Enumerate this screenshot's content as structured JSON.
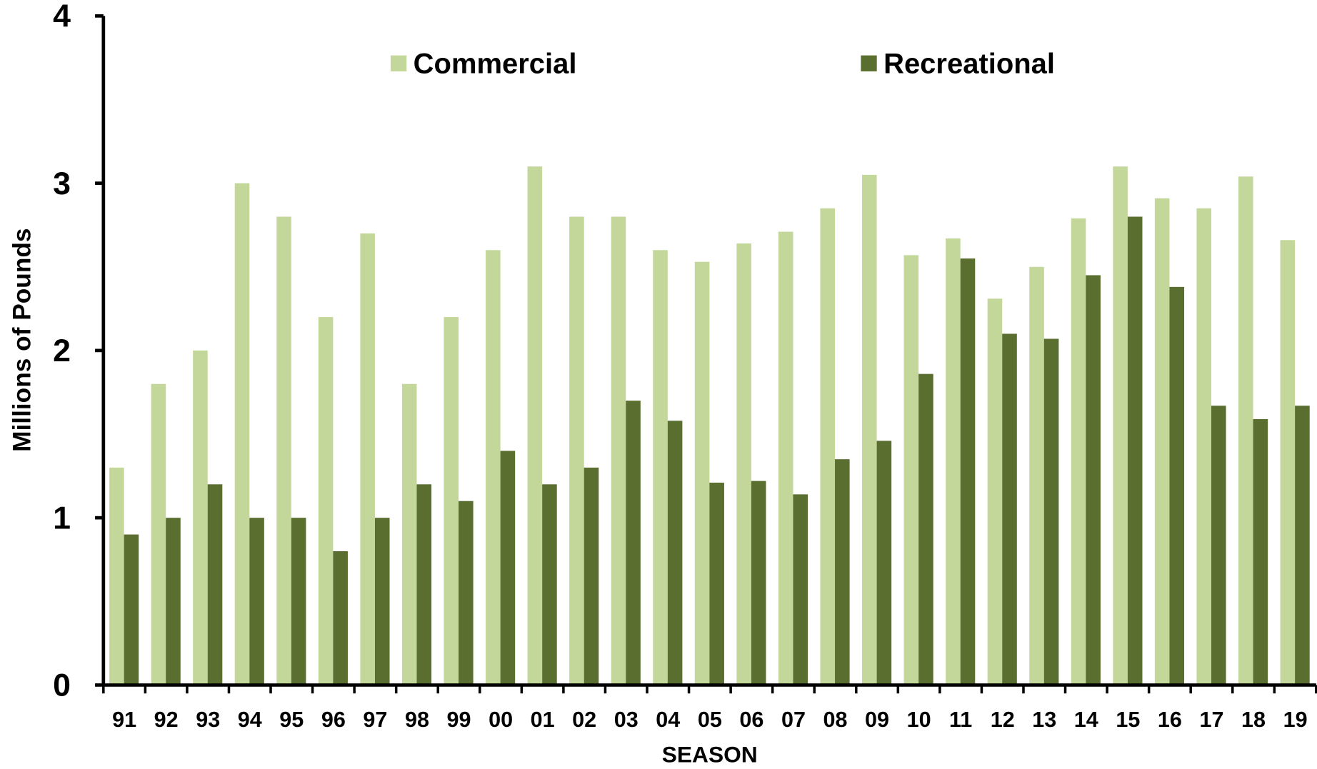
{
  "chart_data": {
    "type": "bar",
    "y_label": "Millions of Pounds",
    "x_label": "SEASON",
    "categories": [
      "91",
      "92",
      "93",
      "94",
      "95",
      "96",
      "97",
      "98",
      "99",
      "00",
      "01",
      "02",
      "03",
      "04",
      "05",
      "06",
      "07",
      "08",
      "09",
      "10",
      "11",
      "12",
      "13",
      "14",
      "15",
      "16",
      "17",
      "18",
      "19"
    ],
    "series": [
      {
        "name": "Commercial",
        "color": "#c4d79b",
        "values": [
          1.3,
          1.8,
          2.0,
          3.0,
          2.8,
          2.2,
          2.7,
          1.8,
          2.2,
          2.6,
          3.1,
          2.8,
          2.8,
          2.6,
          2.53,
          2.64,
          2.71,
          2.85,
          3.05,
          2.57,
          2.67,
          2.31,
          2.5,
          2.79,
          3.1,
          2.91,
          2.85,
          3.04,
          2.66
        ]
      },
      {
        "name": "Recreational",
        "color": "#5a6e2f",
        "values": [
          0.9,
          1.0,
          1.2,
          1.0,
          1.0,
          0.8,
          1.0,
          1.2,
          1.1,
          1.4,
          1.2,
          1.3,
          1.7,
          1.58,
          1.21,
          1.22,
          1.14,
          1.35,
          1.46,
          1.86,
          2.55,
          2.1,
          2.07,
          2.45,
          2.8,
          2.38,
          1.67,
          1.59,
          1.67
        ]
      }
    ],
    "ylim": [
      0,
      4
    ],
    "yticks": [
      0,
      1,
      2,
      3,
      4
    ],
    "grid": false,
    "legend": "top"
  }
}
